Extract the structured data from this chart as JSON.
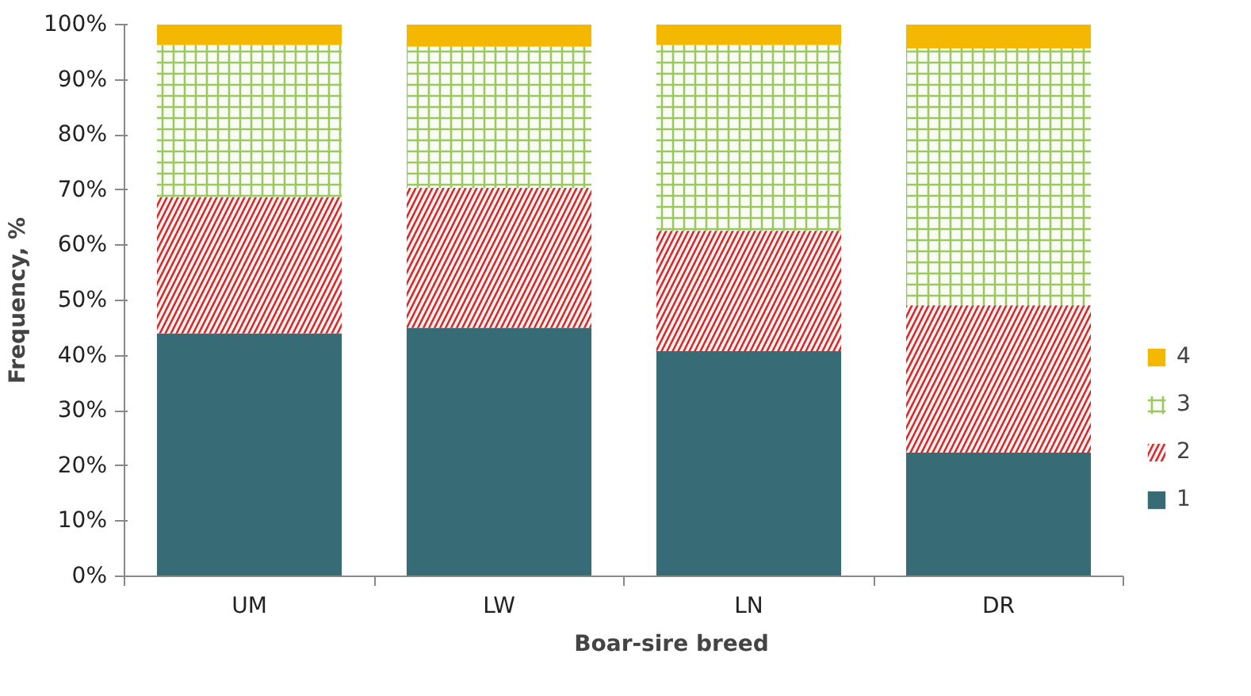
{
  "chart_data": {
    "type": "bar",
    "stacked": true,
    "xlabel": "Boar-sire breed",
    "ylabel": "Frequency, %",
    "categories": [
      "UM",
      "LW",
      "LN",
      "DR"
    ],
    "series": [
      {
        "name": "1",
        "color": "#376b75",
        "values": [
          44.0,
          45.0,
          40.8,
          22.4
        ]
      },
      {
        "name": "2",
        "color": "#d42a2a",
        "values": [
          24.7,
          25.4,
          21.8,
          26.7
        ]
      },
      {
        "name": "3",
        "color": "#9bc85f",
        "values": [
          27.6,
          25.6,
          33.7,
          46.6
        ]
      },
      {
        "name": "4",
        "color": "#f5b800",
        "values": [
          3.7,
          4.0,
          3.7,
          4.3
        ]
      }
    ],
    "ylim": [
      0,
      100
    ],
    "yticks": [
      {
        "value": 0,
        "label": "0%"
      },
      {
        "value": 10,
        "label": "10%"
      },
      {
        "value": 20,
        "label": "20%"
      },
      {
        "value": 30,
        "label": "30%"
      },
      {
        "value": 40,
        "label": "40%"
      },
      {
        "value": 50,
        "label": "50%"
      },
      {
        "value": 60,
        "label": "60%"
      },
      {
        "value": 70,
        "label": "70%"
      },
      {
        "value": 80,
        "label": "80%"
      },
      {
        "value": 90,
        "label": "90%"
      },
      {
        "value": 100,
        "label": "100%"
      }
    ],
    "grid": false,
    "legend": "right"
  }
}
